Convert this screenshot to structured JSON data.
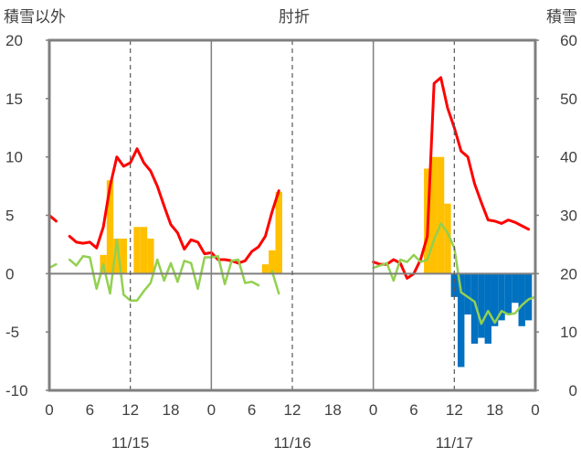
{
  "chart_data": {
    "type": "bar+line",
    "title": "",
    "top_labels": {
      "left": "積雪以外",
      "center": "肘折",
      "right": "積雪"
    },
    "y_left": {
      "range": [
        -10,
        20
      ],
      "ticks": [
        "20",
        "15",
        "10",
        "5",
        "0",
        "-5",
        "-10"
      ]
    },
    "y_right": {
      "range": [
        0,
        60
      ],
      "ticks": [
        "60",
        "50",
        "40",
        "30",
        "20",
        "10",
        "0"
      ]
    },
    "x_axis": {
      "unit": "hour",
      "range": [
        0,
        72
      ],
      "tick_labels": [
        {
          "x": 0,
          "label": "0"
        },
        {
          "x": 6,
          "label": "6"
        },
        {
          "x": 12,
          "label": "12"
        },
        {
          "x": 18,
          "label": "18"
        },
        {
          "x": 24,
          "label": "0"
        },
        {
          "x": 30,
          "label": "6"
        },
        {
          "x": 36,
          "label": "12"
        },
        {
          "x": 42,
          "label": "18"
        },
        {
          "x": 48,
          "label": "0"
        },
        {
          "x": 54,
          "label": "6"
        },
        {
          "x": 60,
          "label": "12"
        },
        {
          "x": 66,
          "label": "18"
        },
        {
          "x": 72,
          "label": "0"
        }
      ],
      "day_labels": [
        {
          "x": 12,
          "label": "11/15"
        },
        {
          "x": 36,
          "label": "11/16"
        },
        {
          "x": 60,
          "label": "11/17"
        }
      ],
      "day_dividers": [
        24,
        48
      ],
      "noon_dashed": [
        12,
        36,
        60
      ]
    },
    "grid": false,
    "series": [
      {
        "type": "bar",
        "axis": "left",
        "color": "#FFC000",
        "points": [
          [
            8,
            1.6
          ],
          [
            9,
            8
          ],
          [
            10,
            3
          ],
          [
            11,
            3
          ],
          [
            13,
            4
          ],
          [
            14,
            4
          ],
          [
            15,
            3
          ],
          [
            32,
            0.8
          ],
          [
            33,
            2
          ],
          [
            34,
            7
          ],
          [
            56,
            9
          ],
          [
            57,
            10
          ],
          [
            58,
            10
          ],
          [
            59,
            6
          ]
        ]
      },
      {
        "type": "bar",
        "axis": "left",
        "color": "#0070C0",
        "direction": "below-zero",
        "points": [
          [
            60,
            -2
          ],
          [
            61,
            -8
          ],
          [
            62,
            -3.5
          ],
          [
            63,
            -6
          ],
          [
            64,
            -5.5
          ],
          [
            65,
            -6
          ],
          [
            66,
            -4.5
          ],
          [
            67,
            -4
          ],
          [
            68,
            -3.5
          ],
          [
            69,
            -2.5
          ],
          [
            70,
            -4.5
          ],
          [
            71,
            -4
          ]
        ]
      },
      {
        "type": "line",
        "axis": "left",
        "color": "#FF0000",
        "segments": [
          [
            [
              0,
              5
            ],
            [
              1,
              4.5
            ]
          ],
          [
            [
              3,
              3.2
            ],
            [
              4,
              2.7
            ],
            [
              5,
              2.6
            ],
            [
              6,
              2.7
            ],
            [
              7,
              2.2
            ],
            [
              8,
              4
            ],
            [
              9,
              7.5
            ],
            [
              10,
              10
            ],
            [
              11,
              9.2
            ],
            [
              12,
              9.5
            ],
            [
              13,
              10.7
            ],
            [
              14,
              9.5
            ],
            [
              15,
              8.8
            ],
            [
              16,
              7.5
            ],
            [
              17,
              5.8
            ],
            [
              18,
              4.2
            ],
            [
              19,
              3.5
            ],
            [
              20,
              2.1
            ],
            [
              21,
              2.9
            ],
            [
              22,
              2.7
            ],
            [
              23,
              1.7
            ],
            [
              24,
              1.8
            ],
            [
              25,
              1.2
            ],
            [
              26,
              1.2
            ],
            [
              27,
              1.1
            ],
            [
              28,
              0.9
            ],
            [
              29,
              1.1
            ],
            [
              30,
              1.9
            ],
            [
              31,
              2.3
            ],
            [
              32,
              3.2
            ],
            [
              33,
              5.3
            ],
            [
              34,
              7.1
            ]
          ],
          [
            [
              48,
              1
            ],
            [
              49,
              0.8
            ],
            [
              50,
              0.8
            ],
            [
              51,
              1.2
            ],
            [
              52,
              0.9
            ],
            [
              53,
              -0.4
            ],
            [
              54,
              0
            ],
            [
              55,
              1.2
            ],
            [
              56,
              3.2
            ],
            [
              57,
              16.3
            ],
            [
              58,
              16.8
            ],
            [
              59,
              14.2
            ],
            [
              60,
              12.5
            ],
            [
              61,
              10.5
            ],
            [
              62,
              10
            ],
            [
              63,
              7.7
            ],
            [
              64,
              6.1
            ],
            [
              65,
              4.6
            ],
            [
              66,
              4.5
            ],
            [
              67,
              4.3
            ],
            [
              68,
              4.6
            ],
            [
              69,
              4.4
            ],
            [
              70,
              4.1
            ],
            [
              71,
              3.8
            ]
          ]
        ]
      },
      {
        "type": "line",
        "axis": "left",
        "color": "#92D050",
        "segments": [
          [
            [
              0,
              0.5
            ],
            [
              1,
              0.8
            ]
          ],
          [
            [
              3,
              1.2
            ],
            [
              4,
              0.7
            ],
            [
              5,
              1.5
            ],
            [
              6,
              1.4
            ],
            [
              7,
              -1.3
            ],
            [
              8,
              0.8
            ],
            [
              9,
              -1.7
            ],
            [
              10,
              2.9
            ],
            [
              11,
              -1.8
            ],
            [
              12,
              -2.3
            ],
            [
              13,
              -2.3
            ],
            [
              14,
              -1.5
            ],
            [
              15,
              -0.8
            ],
            [
              16,
              1.2
            ],
            [
              17,
              -0.6
            ],
            [
              18,
              0.9
            ],
            [
              19,
              -0.7
            ],
            [
              20,
              1.1
            ],
            [
              21,
              0.9
            ],
            [
              22,
              -1.3
            ],
            [
              23,
              1.4
            ],
            [
              24,
              1.4
            ],
            [
              25,
              1.5
            ],
            [
              26,
              -0.9
            ],
            [
              27,
              1.1
            ],
            [
              28,
              1.2
            ],
            [
              29,
              -0.8
            ],
            [
              30,
              -0.7
            ],
            [
              31,
              -1
            ]
          ],
          [
            [
              33,
              0.2
            ],
            [
              34,
              -1.7
            ]
          ],
          [
            [
              48,
              0.5
            ],
            [
              49,
              0.7
            ],
            [
              50,
              0.9
            ],
            [
              51,
              -0.6
            ],
            [
              52,
              1.2
            ],
            [
              53,
              1
            ],
            [
              54,
              1.6
            ],
            [
              55,
              1
            ],
            [
              56,
              1.2
            ],
            [
              57,
              2.9
            ],
            [
              58,
              4.3
            ],
            [
              59,
              3.5
            ],
            [
              60,
              2.2
            ],
            [
              61,
              -1.6
            ],
            [
              62,
              -2
            ],
            [
              63,
              -2.4
            ],
            [
              64,
              -4.3
            ],
            [
              65,
              -3.2
            ],
            [
              66,
              -4.2
            ],
            [
              67,
              -3.2
            ],
            [
              68,
              -3.5
            ],
            [
              69,
              -3.4
            ],
            [
              70,
              -2.7
            ],
            [
              71,
              -2.2
            ],
            [
              72,
              -2
            ]
          ]
        ]
      },
      {
        "type": "line",
        "axis": "left",
        "color": "#7030A0",
        "segments": [
          [
            [
              0,
              -10
            ],
            [
              34,
              -10
            ]
          ],
          [
            [
              48,
              -10
            ],
            [
              72,
              -10
            ]
          ]
        ]
      }
    ]
  }
}
